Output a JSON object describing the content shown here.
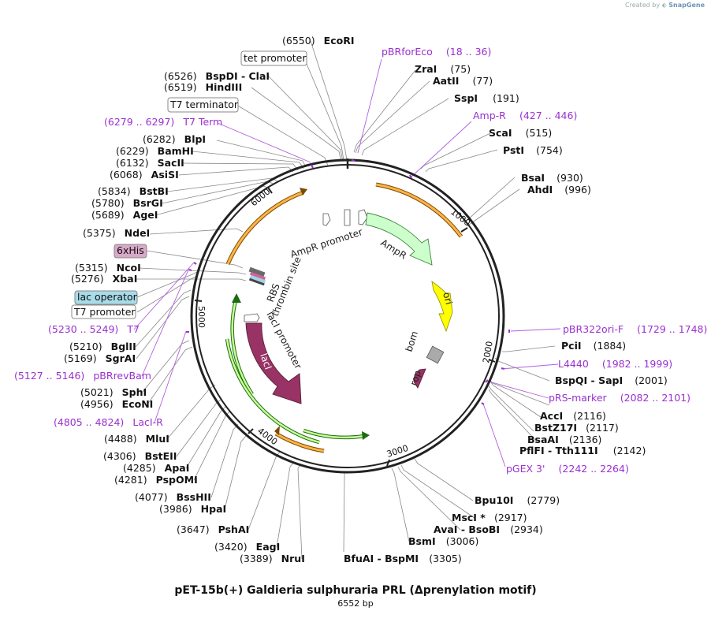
{
  "credit": {
    "prefix": "Created by",
    "brand": "SnapGene"
  },
  "title": "pET-15b(+) Galdieria sulphuraria PRL (Δprenylation motif)",
  "subtitle": "6552 bp",
  "ticks": [
    "1000",
    "2000",
    "3000",
    "4000",
    "5000",
    "6000"
  ],
  "sites": [
    {
      "name": "EcoRI",
      "pos": "(6550)"
    },
    {
      "name": "tet promoter",
      "boxed": true
    },
    {
      "name": "BspDI - ClaI",
      "pos": "(6526)"
    },
    {
      "name": "HindIII",
      "pos": "(6519)"
    },
    {
      "name": "T7 terminator",
      "boxed": true
    },
    {
      "name": "T7 Term",
      "pos": "(6279 .. 6297)",
      "primer": true
    },
    {
      "name": "BlpI",
      "pos": "(6282)"
    },
    {
      "name": "BamHI",
      "pos": "(6229)"
    },
    {
      "name": "SacII",
      "pos": "(6132)"
    },
    {
      "name": "AsiSI",
      "pos": "(6068)"
    },
    {
      "name": "BstBI",
      "pos": "(5834)"
    },
    {
      "name": "BsrGI",
      "pos": "(5780)"
    },
    {
      "name": "AgeI",
      "pos": "(5689)"
    },
    {
      "name": "NdeI",
      "pos": "(5375)"
    },
    {
      "name": "6xHis",
      "boxed": true
    },
    {
      "name": "NcoI",
      "pos": "(5315)"
    },
    {
      "name": "XbaI",
      "pos": "(5276)"
    },
    {
      "name": "lac operator",
      "boxed": true
    },
    {
      "name": "T7 promoter",
      "boxed": true
    },
    {
      "name": "T7",
      "pos": "(5230 .. 5249)",
      "primer": true
    },
    {
      "name": "BglII",
      "pos": "(5210)"
    },
    {
      "name": "SgrAI",
      "pos": "(5169)"
    },
    {
      "name": "pBRrevBam",
      "pos": "(5127 .. 5146)",
      "primer": true
    },
    {
      "name": "SphI",
      "pos": "(5021)"
    },
    {
      "name": "EcoNI",
      "pos": "(4956)"
    },
    {
      "name": "LacI-R",
      "pos": "(4805 .. 4824)",
      "primer": true
    },
    {
      "name": "MluI",
      "pos": "(4488)"
    },
    {
      "name": "BstEII",
      "pos": "(4306)"
    },
    {
      "name": "ApaI",
      "pos": "(4285)"
    },
    {
      "name": "PspOMI",
      "pos": "(4281)"
    },
    {
      "name": "BssHII",
      "pos": "(4077)"
    },
    {
      "name": "HpaI",
      "pos": "(3986)"
    },
    {
      "name": "PshAI",
      "pos": "(3647)"
    },
    {
      "name": "EagI",
      "pos": "(3420)"
    },
    {
      "name": "NruI",
      "pos": "(3389)"
    },
    {
      "name": "BfuAI - BspMI",
      "pos": "(3305)"
    },
    {
      "name": "BsmI",
      "pos": "(3006)"
    },
    {
      "name": "AvaI - BsoBI",
      "pos": "(2934)"
    },
    {
      "name": "MscI *",
      "pos": "(2917)"
    },
    {
      "name": "Bpu10I",
      "pos": "(2779)"
    },
    {
      "name": "pGEX 3'",
      "pos": "(2242 .. 2264)",
      "primer": true
    },
    {
      "name": "PflFI - Tth111I",
      "pos": "(2142)"
    },
    {
      "name": "BsaAI",
      "pos": "(2136)"
    },
    {
      "name": "BstZ17I",
      "pos": "(2117)"
    },
    {
      "name": "AccI",
      "pos": "(2116)"
    },
    {
      "name": "pRS-marker",
      "pos": "(2082 .. 2101)",
      "primer": true
    },
    {
      "name": "BspQI - SapI",
      "pos": "(2001)"
    },
    {
      "name": "L4440",
      "pos": "(1982 .. 1999)",
      "primer": true
    },
    {
      "name": "PciI",
      "pos": "(1884)"
    },
    {
      "name": "pBR322ori-F",
      "pos": "(1729 .. 1748)",
      "primer": true
    },
    {
      "name": "AhdI",
      "pos": "(996)"
    },
    {
      "name": "BsaI",
      "pos": "(930)"
    },
    {
      "name": "PstI",
      "pos": "(754)"
    },
    {
      "name": "ScaI",
      "pos": "(515)"
    },
    {
      "name": "Amp-R",
      "pos": "(427 .. 446)",
      "primer": true
    },
    {
      "name": "SspI",
      "pos": "(191)"
    },
    {
      "name": "AatII",
      "pos": "(77)"
    },
    {
      "name": "ZraI",
      "pos": "(75)"
    },
    {
      "name": "pBRforEco",
      "pos": "(18 .. 36)",
      "primer": true
    }
  ],
  "features": [
    {
      "name": "AmpR promoter"
    },
    {
      "name": "AmpR"
    },
    {
      "name": "ori"
    },
    {
      "name": "bom"
    },
    {
      "name": "rop"
    },
    {
      "name": "lacI"
    },
    {
      "name": "lacI promoter"
    },
    {
      "name": "thrombin site"
    },
    {
      "name": "RBS"
    }
  ],
  "colors": {
    "primer": "#9a30d0",
    "amp": "#ccffcc",
    "ori": "#ffff00",
    "laci": "#993366",
    "orf": "#ffb347"
  }
}
